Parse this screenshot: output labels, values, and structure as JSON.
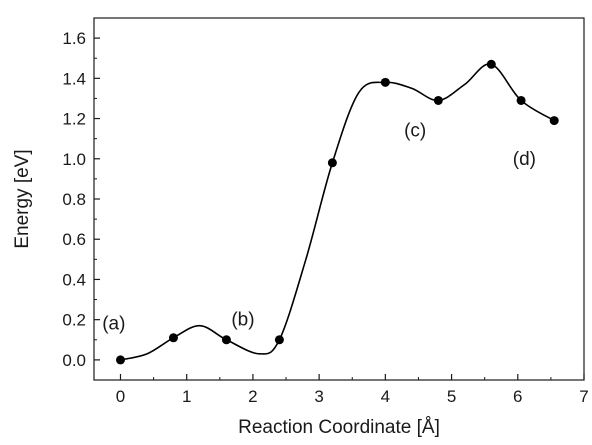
{
  "chart_data": {
    "type": "line",
    "title": "",
    "xlabel": "Reaction Coordinate  [Å]",
    "ylabel": "Energy  [eV]",
    "xlim": [
      -0.4,
      7.0
    ],
    "ylim": [
      -0.1,
      1.7
    ],
    "xticks": [
      0,
      1,
      2,
      3,
      4,
      5,
      6,
      7
    ],
    "yticks": [
      0.0,
      0.2,
      0.4,
      0.6,
      0.8,
      1.0,
      1.2,
      1.4,
      1.6
    ],
    "grid": false,
    "legend": "none",
    "line_color": "#000000",
    "marker_color": "#000000",
    "series": [
      {
        "x": [
          0.0,
          0.8,
          1.6,
          2.4,
          3.2,
          4.0,
          4.8,
          5.6,
          6.05,
          6.55
        ],
        "y": [
          0.0,
          0.11,
          0.1,
          0.1,
          0.98,
          1.38,
          1.29,
          1.47,
          1.29,
          1.19
        ]
      }
    ],
    "curve": {
      "x": [
        0.0,
        0.4,
        0.8,
        1.2,
        1.6,
        2.1,
        2.4,
        2.8,
        3.2,
        3.6,
        4.0,
        4.4,
        4.8,
        5.2,
        5.6,
        6.05,
        6.55
      ],
      "y": [
        0.0,
        0.03,
        0.11,
        0.17,
        0.1,
        0.03,
        0.1,
        0.5,
        0.98,
        1.33,
        1.38,
        1.35,
        1.29,
        1.37,
        1.47,
        1.29,
        1.19
      ]
    },
    "annotations": [
      {
        "text": "(a)",
        "x": -0.1,
        "y": 0.15
      },
      {
        "text": "(b)",
        "x": 1.85,
        "y": 0.17
      },
      {
        "text": "(c)",
        "x": 4.45,
        "y": 1.11
      },
      {
        "text": "(d)",
        "x": 6.1,
        "y": 0.97
      }
    ]
  }
}
